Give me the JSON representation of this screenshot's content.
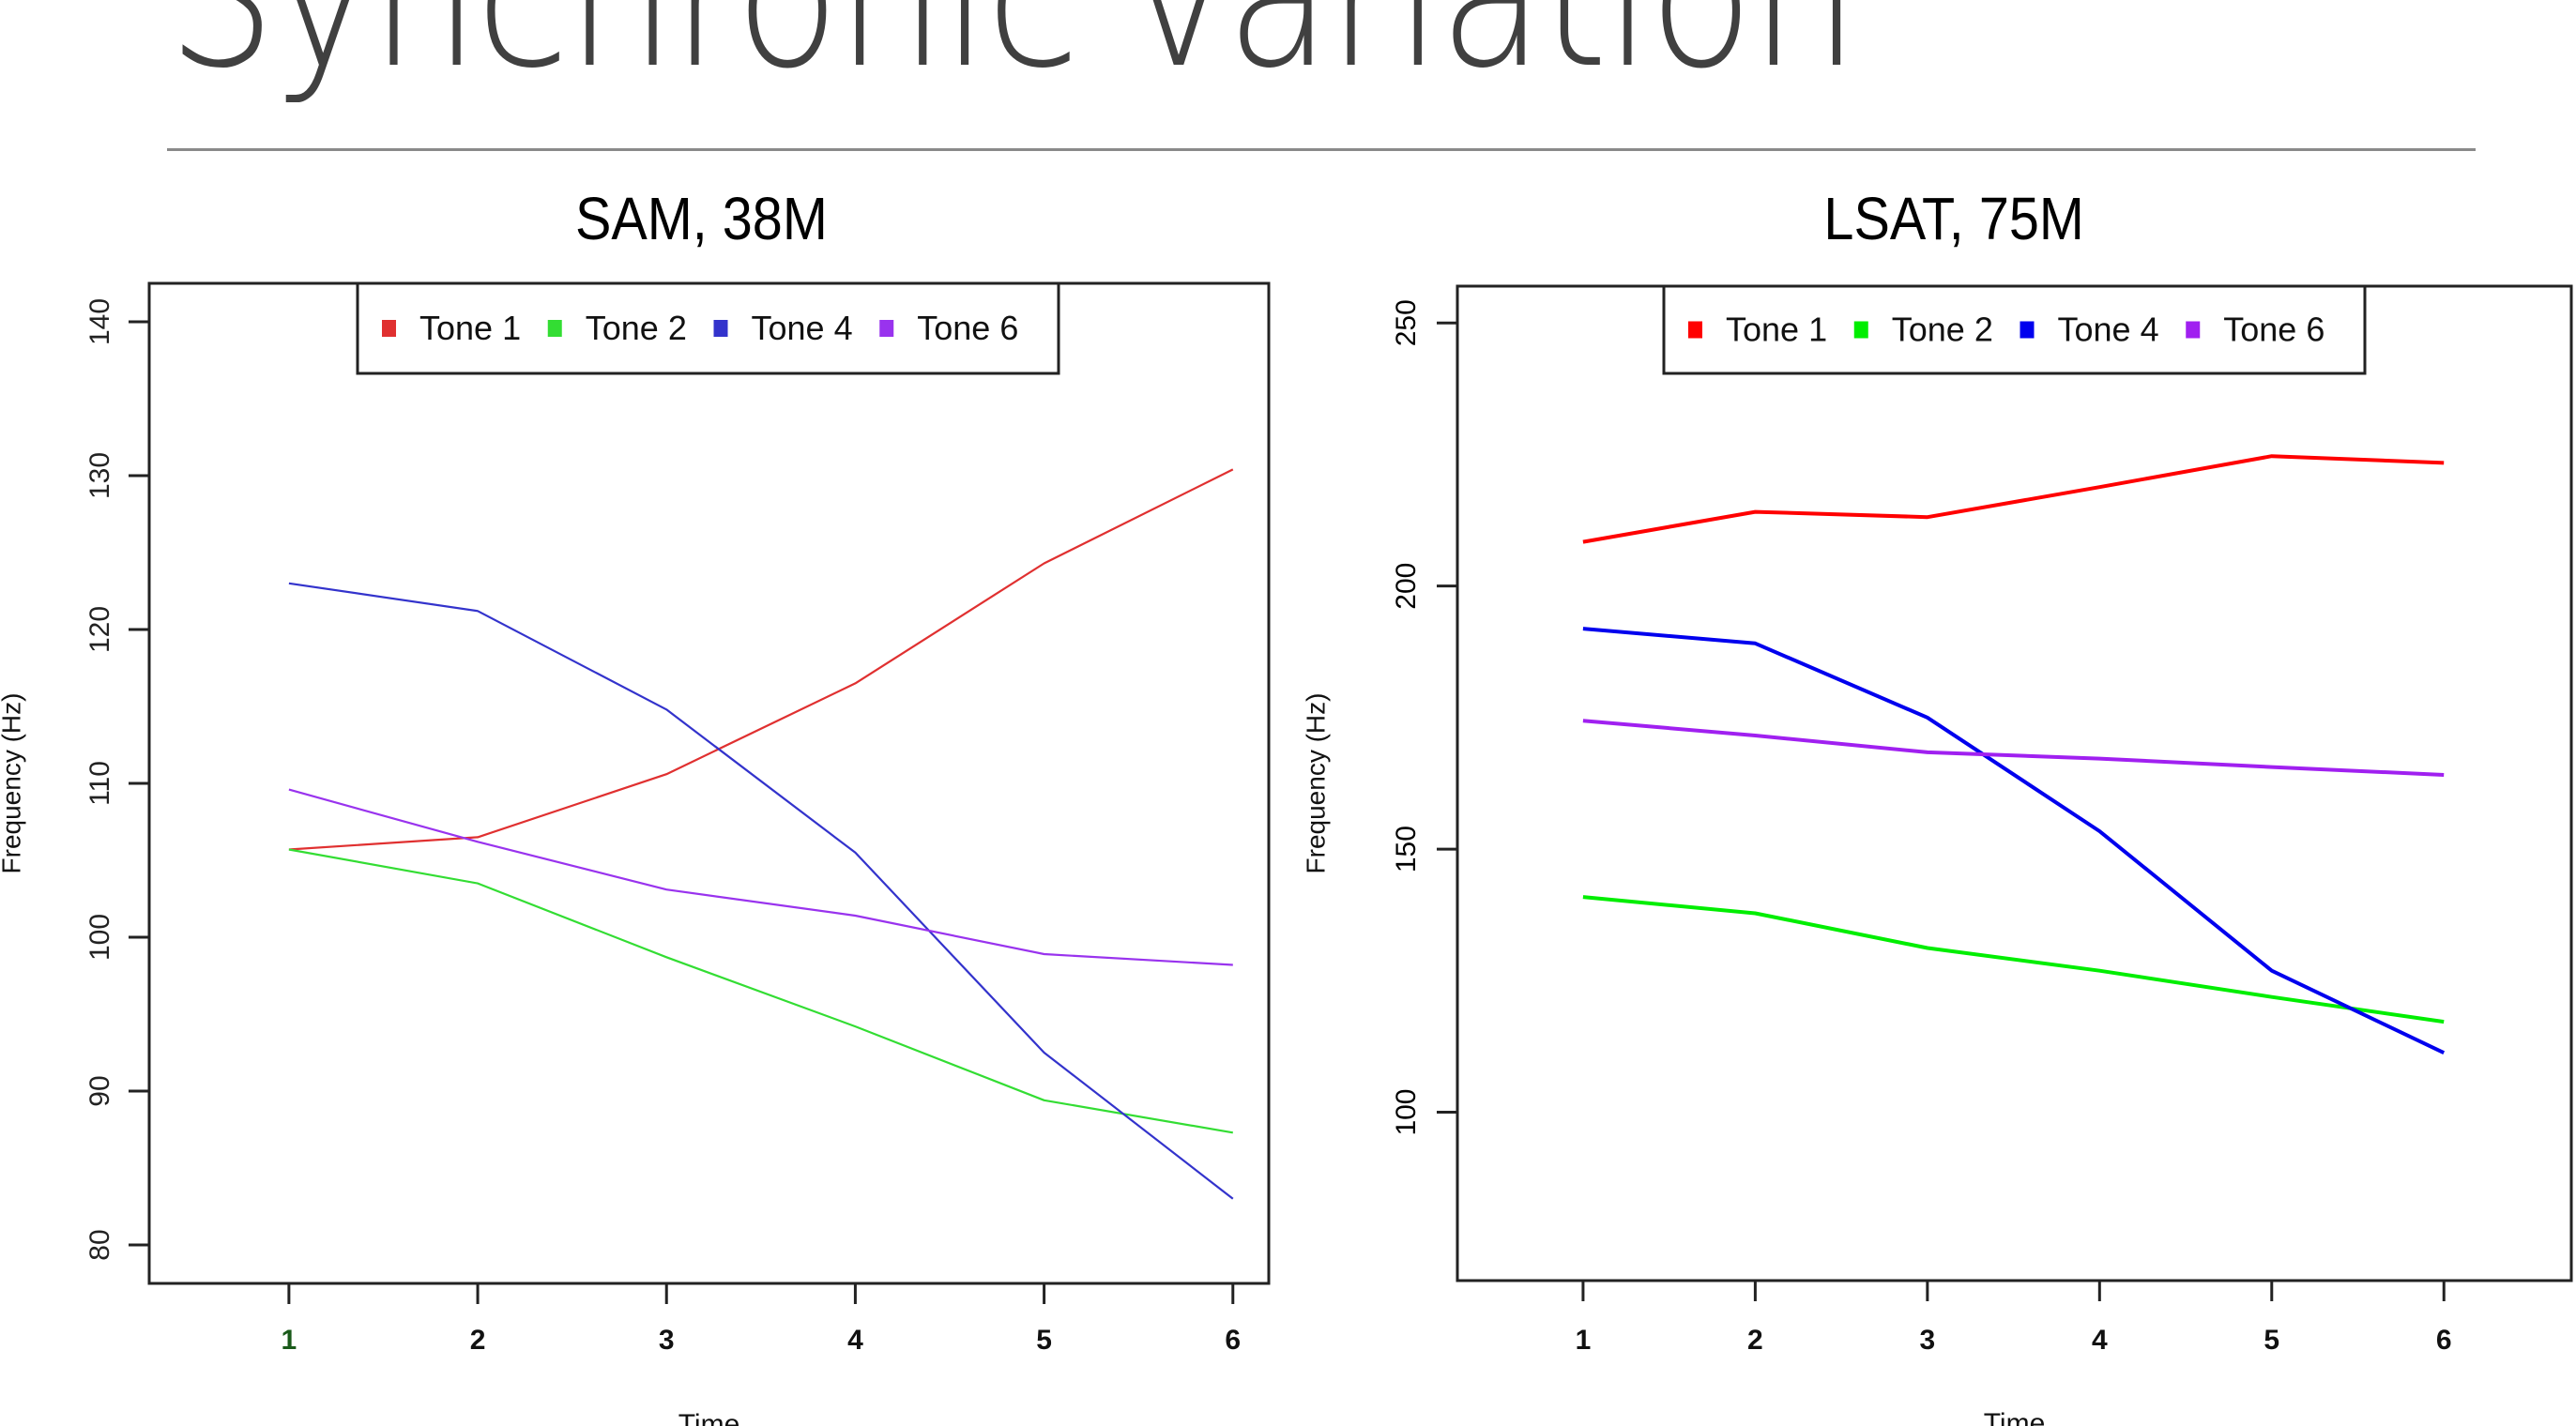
{
  "slide": {
    "title": "Synchronic variation"
  },
  "colors": {
    "tone1": "#ff0000",
    "tone2": "#00ee00",
    "tone4": "#0000ee",
    "tone6": "#a020f0"
  },
  "chart_data": [
    {
      "type": "line",
      "title": "SAM, 38M",
      "xlabel": "Time",
      "ylabel": "Frequency (Hz)",
      "x": [
        1,
        2,
        3,
        4,
        5,
        6
      ],
      "x_ticks": [
        "1",
        "2",
        "3",
        "4",
        "5",
        "6"
      ],
      "y_ticks": [
        "80",
        "90",
        "100",
        "110",
        "120",
        "130",
        "140"
      ],
      "xlim": [
        0.26,
        6.19
      ],
      "ylim": [
        77.5,
        142.5
      ],
      "grid": false,
      "legend_position": "top-center",
      "series": [
        {
          "name": "Tone 1",
          "color": "#e03030",
          "values": [
            105.7,
            106.5,
            110.6,
            116.5,
            124.3,
            130.4
          ]
        },
        {
          "name": "Tone 2",
          "color": "#33dd33",
          "values": [
            105.7,
            103.5,
            98.7,
            94.2,
            89.4,
            87.3
          ]
        },
        {
          "name": "Tone 4",
          "color": "#3333cc",
          "values": [
            123.0,
            121.2,
            114.8,
            105.5,
            92.5,
            83.0
          ]
        },
        {
          "name": "Tone 6",
          "color": "#9933ee",
          "values": [
            109.6,
            106.2,
            103.1,
            101.4,
            98.9,
            98.2
          ]
        }
      ]
    },
    {
      "type": "line",
      "title": "LSAT, 75M",
      "xlabel": "Time",
      "ylabel": "Frequency (Hz)",
      "x": [
        1,
        2,
        3,
        4,
        5,
        6
      ],
      "x_ticks": [
        "1",
        "2",
        "3",
        "4",
        "5",
        "6"
      ],
      "y_ticks": [
        "100",
        "150",
        "200",
        "250"
      ],
      "xlim": [
        0.27,
        6.74
      ],
      "ylim": [
        68,
        257
      ],
      "grid": false,
      "legend_position": "top-center",
      "series": [
        {
          "name": "Tone 1",
          "color": "#ff0000",
          "values": [
            208.4,
            214.1,
            213.1,
            218.8,
            224.7,
            223.4
          ]
        },
        {
          "name": "Tone 2",
          "color": "#00ee00",
          "values": [
            140.9,
            137.8,
            131.2,
            126.9,
            121.9,
            117.2
          ]
        },
        {
          "name": "Tone 4",
          "color": "#0000ee",
          "values": [
            191.9,
            189.1,
            175.0,
            153.4,
            126.9,
            111.3
          ]
        },
        {
          "name": "Tone 6",
          "color": "#a020f0",
          "values": [
            174.4,
            171.6,
            168.4,
            167.2,
            165.6,
            164.1
          ]
        }
      ]
    }
  ]
}
